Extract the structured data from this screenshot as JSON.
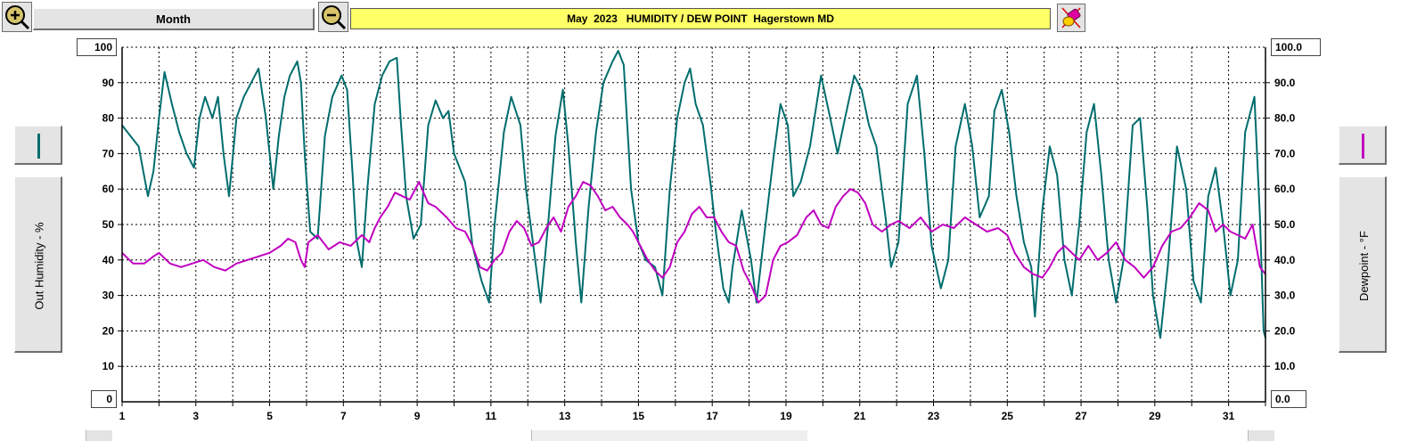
{
  "toolbar": {
    "zoom_in_icon": "magnifier-plus-icon",
    "zoom_out_icon": "magnifier-minus-icon",
    "range_label": "Month",
    "title": "May  2023   HUMIDITY / DEW POINT  Hagerstown MD",
    "tool_icon": "eraser-tool-icon"
  },
  "left_axis": {
    "title": "Out Humidity - %",
    "top_value": "100",
    "bottom_value": "0",
    "swatch_color": "#006d6d"
  },
  "right_axis": {
    "title": "Dewpoint - °F",
    "top_value": "100.0",
    "bottom_value": "0.0",
    "swatch_color": "#c000c0"
  },
  "chart_data": {
    "type": "line",
    "x_range": [
      1,
      32
    ],
    "x_ticks": [
      1,
      3,
      5,
      7,
      9,
      11,
      13,
      15,
      17,
      19,
      21,
      23,
      25,
      27,
      29,
      31
    ],
    "left_ylim": [
      0,
      100
    ],
    "left_ticks": [
      10,
      20,
      30,
      40,
      50,
      60,
      70,
      80,
      90
    ],
    "right_ylim": [
      0,
      100
    ],
    "right_ticks": [
      "10.0",
      "20.0",
      "30.0",
      "40.0",
      "50.0",
      "60.0",
      "70.0",
      "80.0",
      "90.0"
    ],
    "grid": true,
    "series": [
      {
        "axis": "left",
        "color": "#006d6d",
        "points": [
          [
            1.0,
            78
          ],
          [
            1.3,
            74
          ],
          [
            1.45,
            72
          ],
          [
            1.7,
            58
          ],
          [
            1.85,
            65
          ],
          [
            2.0,
            80
          ],
          [
            2.15,
            93
          ],
          [
            2.35,
            84
          ],
          [
            2.55,
            76
          ],
          [
            2.75,
            70
          ],
          [
            2.95,
            66
          ],
          [
            3.1,
            80
          ],
          [
            3.25,
            86
          ],
          [
            3.45,
            80
          ],
          [
            3.6,
            86
          ],
          [
            3.75,
            70
          ],
          [
            3.9,
            58
          ],
          [
            4.1,
            80
          ],
          [
            4.3,
            86
          ],
          [
            4.5,
            90
          ],
          [
            4.7,
            94
          ],
          [
            4.9,
            80
          ],
          [
            5.0,
            70
          ],
          [
            5.1,
            60
          ],
          [
            5.25,
            75
          ],
          [
            5.4,
            86
          ],
          [
            5.55,
            92
          ],
          [
            5.75,
            96
          ],
          [
            5.85,
            90
          ],
          [
            5.95,
            70
          ],
          [
            6.1,
            48
          ],
          [
            6.3,
            46
          ],
          [
            6.5,
            75
          ],
          [
            6.7,
            86
          ],
          [
            6.95,
            92
          ],
          [
            7.1,
            88
          ],
          [
            7.25,
            64
          ],
          [
            7.35,
            46
          ],
          [
            7.5,
            38
          ],
          [
            7.65,
            60
          ],
          [
            7.85,
            84
          ],
          [
            8.05,
            92
          ],
          [
            8.25,
            96
          ],
          [
            8.45,
            97
          ],
          [
            8.55,
            80
          ],
          [
            8.7,
            58
          ],
          [
            8.9,
            46
          ],
          [
            9.1,
            50
          ],
          [
            9.3,
            78
          ],
          [
            9.5,
            85
          ],
          [
            9.7,
            80
          ],
          [
            9.85,
            82
          ],
          [
            10.0,
            70
          ],
          [
            10.15,
            66
          ],
          [
            10.3,
            62
          ],
          [
            10.5,
            44
          ],
          [
            10.75,
            34
          ],
          [
            10.95,
            28
          ],
          [
            11.1,
            50
          ],
          [
            11.35,
            76
          ],
          [
            11.55,
            86
          ],
          [
            11.8,
            78
          ],
          [
            11.95,
            60
          ],
          [
            12.2,
            40
          ],
          [
            12.35,
            28
          ],
          [
            12.55,
            50
          ],
          [
            12.75,
            75
          ],
          [
            12.95,
            88
          ],
          [
            13.1,
            72
          ],
          [
            13.3,
            45
          ],
          [
            13.45,
            28
          ],
          [
            13.65,
            55
          ],
          [
            13.85,
            76
          ],
          [
            14.05,
            90
          ],
          [
            14.3,
            96
          ],
          [
            14.45,
            99
          ],
          [
            14.6,
            95
          ],
          [
            14.8,
            60
          ],
          [
            15.0,
            45
          ],
          [
            15.2,
            40
          ],
          [
            15.45,
            38
          ],
          [
            15.65,
            30
          ],
          [
            15.85,
            60
          ],
          [
            16.05,
            80
          ],
          [
            16.25,
            90
          ],
          [
            16.4,
            94
          ],
          [
            16.55,
            84
          ],
          [
            16.75,
            78
          ],
          [
            16.95,
            62
          ],
          [
            17.1,
            48
          ],
          [
            17.3,
            32
          ],
          [
            17.45,
            28
          ],
          [
            17.55,
            38
          ],
          [
            17.8,
            54
          ],
          [
            18.05,
            40
          ],
          [
            18.2,
            28
          ],
          [
            18.4,
            46
          ],
          [
            18.65,
            68
          ],
          [
            18.85,
            84
          ],
          [
            19.05,
            78
          ],
          [
            19.2,
            58
          ],
          [
            19.4,
            62
          ],
          [
            19.65,
            72
          ],
          [
            19.95,
            92
          ],
          [
            20.2,
            80
          ],
          [
            20.4,
            70
          ],
          [
            20.6,
            80
          ],
          [
            20.85,
            92
          ],
          [
            21.05,
            88
          ],
          [
            21.25,
            78
          ],
          [
            21.45,
            72
          ],
          [
            21.7,
            52
          ],
          [
            21.85,
            38
          ],
          [
            22.05,
            45
          ],
          [
            22.3,
            84
          ],
          [
            22.55,
            92
          ],
          [
            22.75,
            70
          ],
          [
            22.95,
            44
          ],
          [
            23.2,
            32
          ],
          [
            23.4,
            40
          ],
          [
            23.6,
            72
          ],
          [
            23.85,
            84
          ],
          [
            24.05,
            72
          ],
          [
            24.25,
            52
          ],
          [
            24.5,
            58
          ],
          [
            24.65,
            82
          ],
          [
            24.85,
            88
          ],
          [
            25.05,
            76
          ],
          [
            25.25,
            58
          ],
          [
            25.45,
            45
          ],
          [
            25.65,
            38
          ],
          [
            25.75,
            24
          ],
          [
            25.95,
            54
          ],
          [
            26.15,
            72
          ],
          [
            26.35,
            64
          ],
          [
            26.55,
            40
          ],
          [
            26.75,
            30
          ],
          [
            26.95,
            50
          ],
          [
            27.15,
            76
          ],
          [
            27.35,
            84
          ],
          [
            27.55,
            64
          ],
          [
            27.75,
            40
          ],
          [
            27.95,
            28
          ],
          [
            28.15,
            40
          ],
          [
            28.4,
            78
          ],
          [
            28.6,
            80
          ],
          [
            28.8,
            54
          ],
          [
            28.95,
            30
          ],
          [
            29.15,
            18
          ],
          [
            29.35,
            38
          ],
          [
            29.6,
            72
          ],
          [
            29.85,
            60
          ],
          [
            30.05,
            34
          ],
          [
            30.25,
            28
          ],
          [
            30.45,
            58
          ],
          [
            30.65,
            66
          ],
          [
            30.85,
            50
          ],
          [
            31.05,
            30
          ],
          [
            31.25,
            40
          ],
          [
            31.45,
            76
          ],
          [
            31.7,
            86
          ],
          [
            31.85,
            52
          ],
          [
            31.95,
            20
          ],
          [
            32.0,
            18
          ]
        ]
      },
      {
        "axis": "right",
        "color": "#c000c0",
        "points": [
          [
            1.0,
            42
          ],
          [
            1.3,
            39
          ],
          [
            1.6,
            39
          ],
          [
            1.85,
            41
          ],
          [
            2.0,
            42
          ],
          [
            2.3,
            39
          ],
          [
            2.6,
            38
          ],
          [
            2.9,
            39
          ],
          [
            3.2,
            40
          ],
          [
            3.5,
            38
          ],
          [
            3.8,
            37
          ],
          [
            4.1,
            39
          ],
          [
            4.4,
            40
          ],
          [
            4.7,
            41
          ],
          [
            5.0,
            42
          ],
          [
            5.3,
            44
          ],
          [
            5.5,
            46
          ],
          [
            5.7,
            45
          ],
          [
            5.85,
            40
          ],
          [
            5.95,
            38
          ],
          [
            6.05,
            45
          ],
          [
            6.3,
            47
          ],
          [
            6.6,
            43
          ],
          [
            6.9,
            45
          ],
          [
            7.2,
            44
          ],
          [
            7.5,
            47
          ],
          [
            7.7,
            45
          ],
          [
            7.85,
            49
          ],
          [
            8.0,
            52
          ],
          [
            8.2,
            55
          ],
          [
            8.4,
            59
          ],
          [
            8.6,
            58
          ],
          [
            8.8,
            57
          ],
          [
            9.05,
            62
          ],
          [
            9.3,
            56
          ],
          [
            9.5,
            55
          ],
          [
            9.8,
            52
          ],
          [
            10.05,
            49
          ],
          [
            10.3,
            48
          ],
          [
            10.5,
            44
          ],
          [
            10.7,
            38
          ],
          [
            10.9,
            37
          ],
          [
            11.1,
            40
          ],
          [
            11.3,
            42
          ],
          [
            11.5,
            48
          ],
          [
            11.7,
            51
          ],
          [
            11.9,
            49
          ],
          [
            12.1,
            44
          ],
          [
            12.3,
            45
          ],
          [
            12.5,
            49
          ],
          [
            12.7,
            52
          ],
          [
            12.9,
            48
          ],
          [
            13.1,
            55
          ],
          [
            13.3,
            58
          ],
          [
            13.5,
            62
          ],
          [
            13.7,
            61
          ],
          [
            13.9,
            58
          ],
          [
            14.1,
            54
          ],
          [
            14.3,
            55
          ],
          [
            14.5,
            52
          ],
          [
            14.7,
            50
          ],
          [
            14.85,
            48
          ],
          [
            15.0,
            45
          ],
          [
            15.25,
            40
          ],
          [
            15.45,
            37
          ],
          [
            15.65,
            35
          ],
          [
            15.85,
            38
          ],
          [
            16.05,
            45
          ],
          [
            16.25,
            48
          ],
          [
            16.45,
            53
          ],
          [
            16.65,
            55
          ],
          [
            16.85,
            52
          ],
          [
            17.05,
            52
          ],
          [
            17.25,
            48
          ],
          [
            17.45,
            45
          ],
          [
            17.65,
            44
          ],
          [
            17.85,
            37
          ],
          [
            18.05,
            33
          ],
          [
            18.25,
            28
          ],
          [
            18.45,
            30
          ],
          [
            18.65,
            40
          ],
          [
            18.85,
            44
          ],
          [
            19.05,
            45
          ],
          [
            19.3,
            47
          ],
          [
            19.55,
            52
          ],
          [
            19.75,
            54
          ],
          [
            19.95,
            50
          ],
          [
            20.15,
            49
          ],
          [
            20.35,
            55
          ],
          [
            20.55,
            58
          ],
          [
            20.75,
            60
          ],
          [
            20.95,
            59
          ],
          [
            21.15,
            56
          ],
          [
            21.35,
            50
          ],
          [
            21.6,
            48
          ],
          [
            21.85,
            50
          ],
          [
            22.05,
            51
          ],
          [
            22.35,
            49
          ],
          [
            22.65,
            52
          ],
          [
            22.95,
            48
          ],
          [
            23.25,
            50
          ],
          [
            23.55,
            49
          ],
          [
            23.85,
            52
          ],
          [
            24.15,
            50
          ],
          [
            24.45,
            48
          ],
          [
            24.75,
            49
          ],
          [
            25.0,
            47
          ],
          [
            25.2,
            42
          ],
          [
            25.45,
            38
          ],
          [
            25.7,
            36
          ],
          [
            25.95,
            35
          ],
          [
            26.15,
            38
          ],
          [
            26.35,
            42
          ],
          [
            26.55,
            44
          ],
          [
            26.75,
            42
          ],
          [
            26.95,
            40
          ],
          [
            27.2,
            44
          ],
          [
            27.45,
            40
          ],
          [
            27.7,
            42
          ],
          [
            27.95,
            45
          ],
          [
            28.2,
            40
          ],
          [
            28.45,
            38
          ],
          [
            28.7,
            35
          ],
          [
            28.95,
            38
          ],
          [
            29.2,
            44
          ],
          [
            29.45,
            48
          ],
          [
            29.7,
            49
          ],
          [
            29.95,
            52
          ],
          [
            30.2,
            56
          ],
          [
            30.45,
            54
          ],
          [
            30.65,
            48
          ],
          [
            30.85,
            50
          ],
          [
            31.05,
            48
          ],
          [
            31.25,
            47
          ],
          [
            31.45,
            46
          ],
          [
            31.65,
            50
          ],
          [
            31.85,
            38
          ],
          [
            32.0,
            36
          ]
        ]
      }
    ]
  }
}
